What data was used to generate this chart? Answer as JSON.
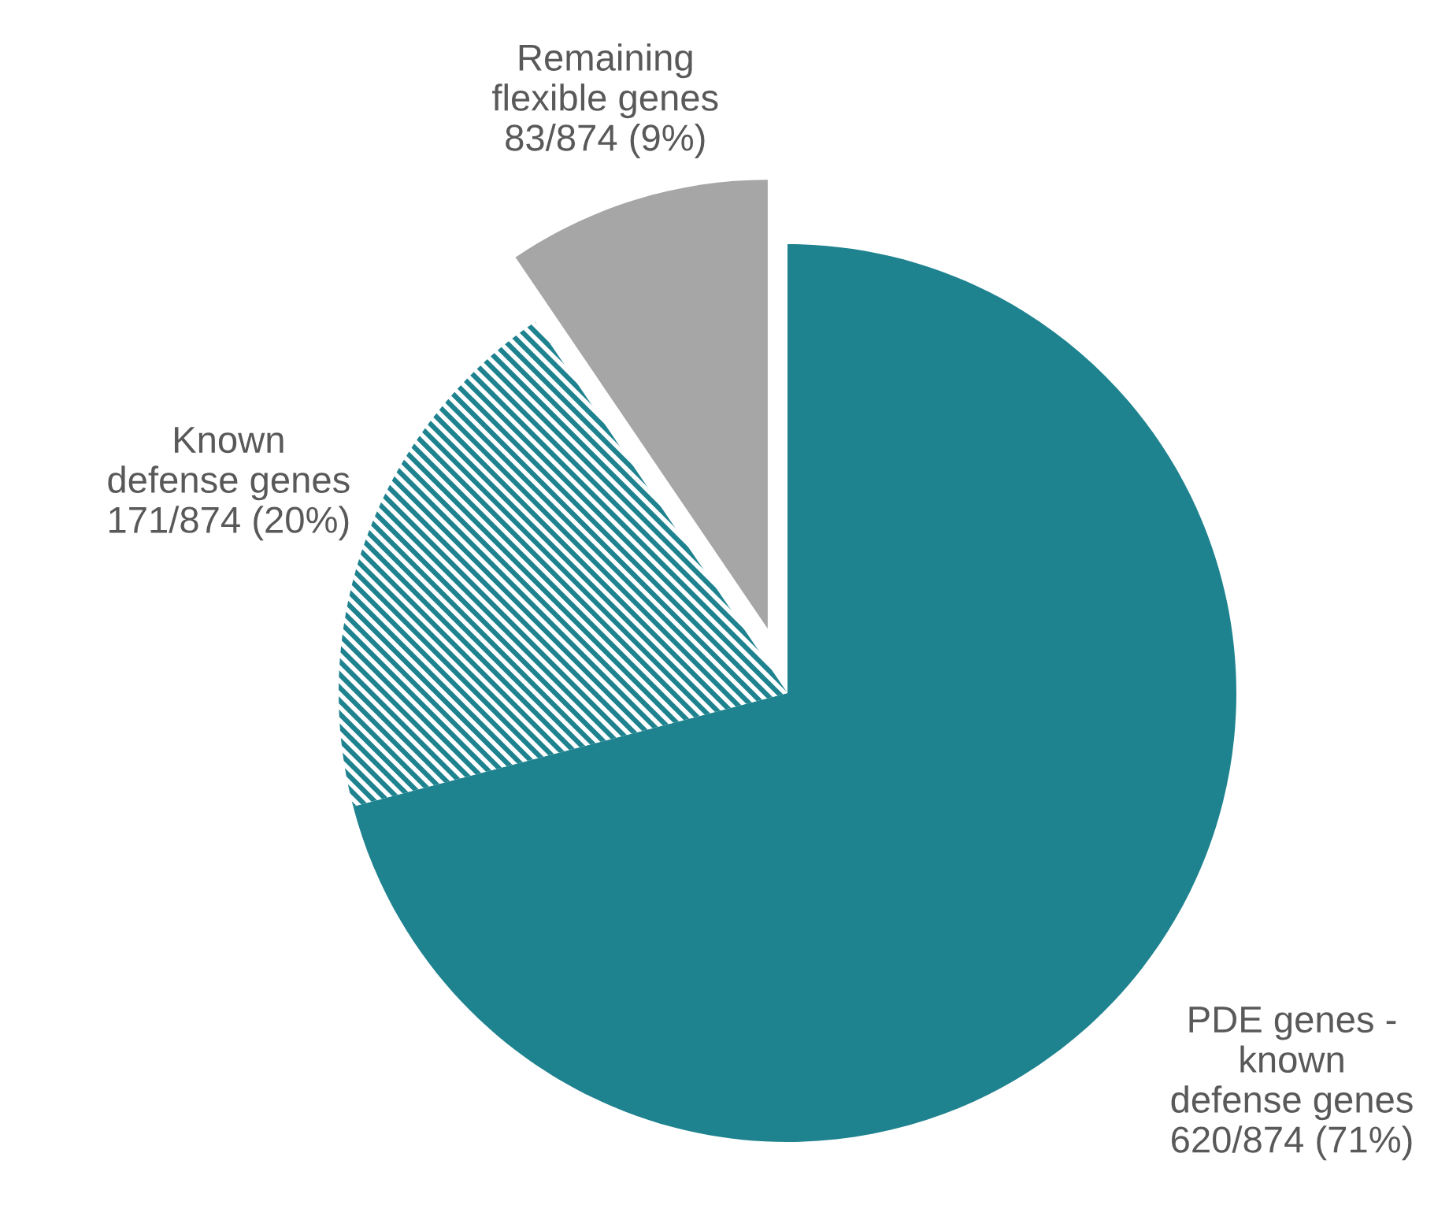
{
  "chart_data": {
    "type": "pie",
    "categories": [
      "PDE genes -\nknown\ndefense genes",
      "Known\ndefense genes",
      "Remaining\nflexible genes"
    ],
    "values": [
      620,
      171,
      83
    ],
    "value_labels": [
      "620/874 (71%)",
      "171/874 (20%)",
      "83/874 (9%)"
    ],
    "colors": [
      "#1f838f",
      "#1f838f",
      "#a6a6a6"
    ],
    "legend": false
  }
}
